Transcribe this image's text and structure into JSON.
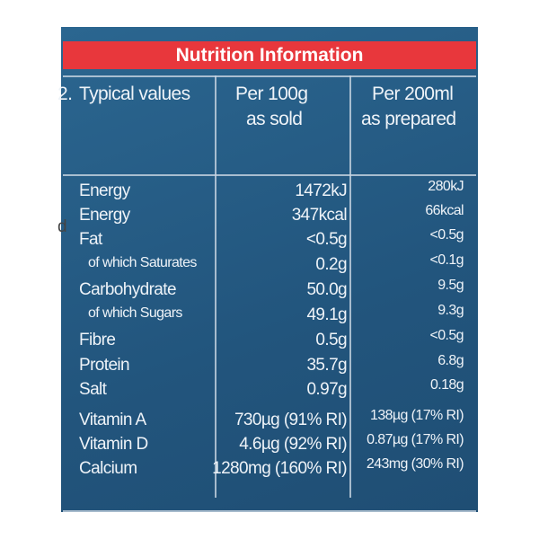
{
  "title": "Nutrition Information",
  "header": {
    "label": "Typical values",
    "per_100g": [
      "Per 100g",
      "as sold"
    ],
    "per_200ml": [
      "Per 200ml",
      "as prepared"
    ]
  },
  "rows": [
    [
      "Energy",
      "1472kJ",
      "280kJ"
    ],
    [
      "Energy",
      "347kcal",
      "66kcal"
    ],
    [
      "Fat",
      "<0.5g",
      "<0.5g"
    ],
    [
      "of which Saturates",
      "0.2g",
      "<0.1g"
    ],
    [
      "Carbohydrate",
      "50.0g",
      "9.5g"
    ],
    [
      "of which Sugars",
      "49.1g",
      "9.3g"
    ],
    [
      "Fibre",
      "0.5g",
      "<0.5g"
    ],
    [
      "Protein",
      "35.7g",
      "6.8g"
    ],
    [
      "Salt",
      "0.97g",
      "0.18g"
    ],
    [
      "Vitamin A",
      "730µg (91% RI)",
      "138µg (17% RI)"
    ],
    [
      "Vitamin D",
      "4.6µg (92% RI)",
      "0.87µg (17% RI)"
    ],
    [
      "Calcium",
      "1280mg (160% RI)",
      "243mg (30% RI)"
    ]
  ],
  "edge_fragments": [
    "2.",
    "d"
  ]
}
